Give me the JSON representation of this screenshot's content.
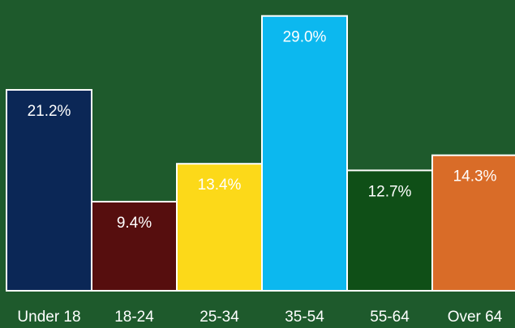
{
  "chart_data": {
    "type": "bar",
    "title": "",
    "xlabel": "",
    "ylabel": "",
    "categories": [
      "Under 18",
      "18-24",
      "25-34",
      "35-54",
      "55-64",
      "Over 64"
    ],
    "values": [
      21.2,
      9.4,
      13.4,
      29.0,
      12.7,
      14.3
    ],
    "data_labels": [
      "21.2%",
      "9.4%",
      "13.4%",
      "29.0%",
      "12.7%",
      "14.3%"
    ],
    "ylim": [
      0,
      30
    ],
    "grid": false,
    "legend": "none",
    "colors": {
      "background": "#1e5a2c",
      "bars": [
        "#0b2756",
        "#560e0e",
        "#fcd919",
        "#0cb8ef",
        "#0f4f17",
        "#d96c28"
      ],
      "bar_outline": "#ffffff",
      "text": "#ffffff"
    }
  }
}
